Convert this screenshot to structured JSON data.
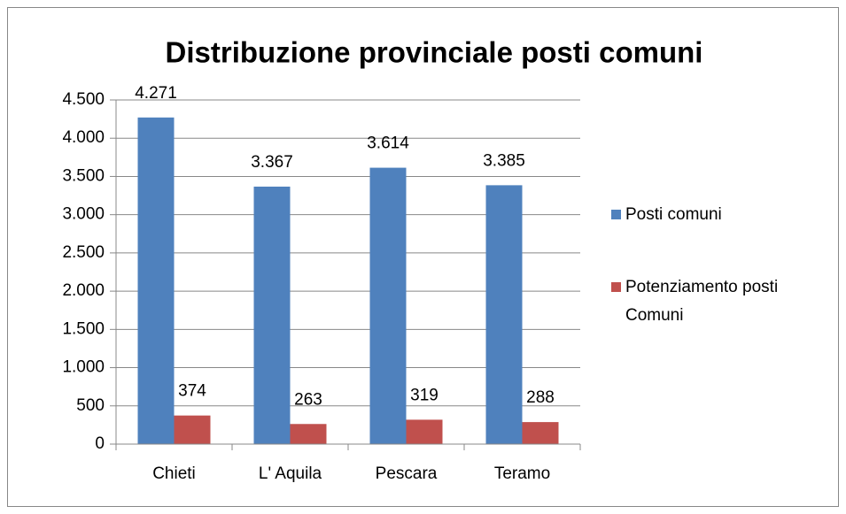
{
  "chart_data": {
    "type": "bar",
    "title": "Distribuzione provinciale posti comuni",
    "categories": [
      "Chieti",
      "L' Aquila",
      "Pescara",
      "Teramo"
    ],
    "series": [
      {
        "name": "Posti comuni",
        "color": "#4f81bd",
        "values": [
          4271,
          3367,
          3614,
          3385
        ],
        "value_labels": [
          "4.271",
          "3.367",
          "3.614",
          "3.385"
        ]
      },
      {
        "name": "Potenziamento posti Comuni",
        "color": "#c0504d",
        "values": [
          374,
          263,
          319,
          288
        ]
      }
    ],
    "ylim": [
      0,
      4500
    ],
    "yticks": [
      0,
      500,
      {
        "value": 1000,
        "label": "1.000"
      },
      {
        "value": 1500,
        "label": "1.500"
      },
      {
        "value": 2000,
        "label": "2.000"
      },
      {
        "value": 2500,
        "label": "2.500"
      },
      {
        "value": 3000,
        "label": "3.000"
      },
      {
        "value": 3500,
        "label": "3.500"
      },
      {
        "value": 4000,
        "label": "4.000"
      },
      {
        "value": 4500,
        "label": "4.500"
      }
    ],
    "grid": true,
    "legend": "right"
  }
}
